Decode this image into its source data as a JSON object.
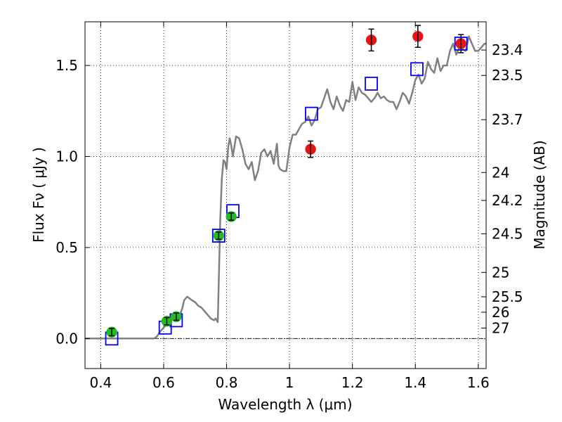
{
  "chart_data": {
    "type": "scatter",
    "xlabel": "Wavelength  λ (μm)",
    "ylabel": "Flux  Fν ( μJy )",
    "ylabel_right": "Magnitude (AB)",
    "xlim": [
      0.35,
      1.625
    ],
    "ylim": [
      -0.165,
      1.74
    ],
    "grid": true,
    "x_ticks": [
      {
        "value": 0.4,
        "label": "0.4"
      },
      {
        "value": 0.6,
        "label": "0.6"
      },
      {
        "value": 0.8,
        "label": "0.8"
      },
      {
        "value": 1.0,
        "label": "1"
      },
      {
        "value": 1.2,
        "label": "1.2"
      },
      {
        "value": 1.4,
        "label": "1.4"
      },
      {
        "value": 1.6,
        "label": "1.6"
      }
    ],
    "y_ticks": [
      {
        "value": 0.0,
        "label": "0.0"
      },
      {
        "value": 0.5,
        "label": "0.5"
      },
      {
        "value": 1.0,
        "label": "1.0"
      },
      {
        "value": 1.5,
        "label": "1.5"
      }
    ],
    "mag_ticks": [
      {
        "value": 23.4,
        "label": "23.4"
      },
      {
        "value": 23.5,
        "label": "23.5"
      },
      {
        "value": 23.7,
        "label": "23.7"
      },
      {
        "value": 24.0,
        "label": "24"
      },
      {
        "value": 24.2,
        "label": "24.2"
      },
      {
        "value": 24.5,
        "label": "24.5"
      },
      {
        "value": 25.0,
        "label": "25"
      },
      {
        "value": 25.5,
        "label": "25.5"
      },
      {
        "value": 26.0,
        "label": "26"
      },
      {
        "value": 27.0,
        "label": "27"
      }
    ],
    "series": [
      {
        "kind": "line",
        "color": "#808080",
        "x": [
          0.35,
          0.57,
          0.578,
          0.59,
          0.6,
          0.615,
          0.63,
          0.64,
          0.65,
          0.66,
          0.665,
          0.675,
          0.69,
          0.7,
          0.71,
          0.72,
          0.73,
          0.74,
          0.75,
          0.76,
          0.765,
          0.772,
          0.78,
          0.785,
          0.79,
          0.795,
          0.8,
          0.805,
          0.81,
          0.815,
          0.82,
          0.83,
          0.84,
          0.85,
          0.86,
          0.87,
          0.88,
          0.89,
          0.9,
          0.91,
          0.92,
          0.93,
          0.94,
          0.95,
          0.96,
          0.965,
          0.97,
          0.98,
          0.99,
          1.0,
          1.01,
          1.02,
          1.03,
          1.04,
          1.05,
          1.06,
          1.07,
          1.08,
          1.09,
          1.1,
          1.11,
          1.12,
          1.13,
          1.14,
          1.15,
          1.16,
          1.17,
          1.18,
          1.19,
          1.2,
          1.21,
          1.22,
          1.23,
          1.24,
          1.25,
          1.26,
          1.27,
          1.28,
          1.29,
          1.3,
          1.31,
          1.32,
          1.33,
          1.34,
          1.35,
          1.36,
          1.37,
          1.38,
          1.39,
          1.4,
          1.41,
          1.42,
          1.43,
          1.44,
          1.45,
          1.46,
          1.47,
          1.48,
          1.49,
          1.5,
          1.51,
          1.52,
          1.53,
          1.54,
          1.55,
          1.56,
          1.57,
          1.58,
          1.59,
          1.6,
          1.61,
          1.62,
          1.625
        ],
        "y": [
          0.0,
          0.0,
          0.01,
          0.04,
          0.06,
          0.09,
          0.11,
          0.12,
          0.12,
          0.17,
          0.21,
          0.23,
          0.21,
          0.2,
          0.18,
          0.17,
          0.15,
          0.13,
          0.11,
          0.1,
          0.11,
          0.09,
          0.66,
          0.88,
          0.98,
          0.97,
          0.93,
          1.05,
          1.1,
          1.06,
          1.0,
          1.11,
          1.1,
          1.04,
          0.96,
          0.93,
          0.97,
          0.87,
          0.92,
          1.02,
          1.04,
          1.0,
          1.03,
          0.96,
          1.07,
          0.95,
          0.93,
          0.92,
          0.92,
          1.05,
          1.12,
          1.12,
          1.15,
          1.18,
          1.19,
          1.22,
          1.17,
          1.2,
          1.26,
          1.27,
          1.32,
          1.37,
          1.3,
          1.26,
          1.33,
          1.28,
          1.25,
          1.31,
          1.3,
          1.41,
          1.31,
          1.38,
          1.35,
          1.34,
          1.32,
          1.3,
          1.32,
          1.35,
          1.32,
          1.33,
          1.31,
          1.3,
          1.3,
          1.26,
          1.3,
          1.35,
          1.33,
          1.29,
          1.35,
          1.42,
          1.45,
          1.4,
          1.43,
          1.52,
          1.48,
          1.46,
          1.54,
          1.47,
          1.5,
          1.5,
          1.58,
          1.62,
          1.56,
          1.6,
          1.59,
          1.58,
          1.66,
          1.62,
          1.58,
          1.58,
          1.6,
          1.62,
          1.62
        ]
      },
      {
        "kind": "open-square",
        "color": "#0000ff",
        "x": [
          0.435,
          0.605,
          0.64,
          0.775,
          0.82,
          1.07,
          1.26,
          1.405,
          1.545
        ],
        "y": [
          0.0,
          0.06,
          0.1,
          0.565,
          0.7,
          1.235,
          1.4,
          1.48,
          1.62
        ]
      },
      {
        "kind": "point-errorbar",
        "color": "#22bb22",
        "x": [
          0.435,
          0.61,
          0.64,
          0.775,
          0.815
        ],
        "y": [
          0.035,
          0.095,
          0.12,
          0.565,
          0.67
        ],
        "err": [
          0.02,
          0.02,
          0.02,
          0.02,
          0.02
        ]
      },
      {
        "kind": "point-errorbar",
        "color": "#ee1111",
        "x": [
          1.067,
          1.26,
          1.408,
          1.545
        ],
        "y": [
          1.04,
          1.64,
          1.66,
          1.62
        ],
        "err": [
          0.045,
          0.06,
          0.06,
          0.05
        ]
      }
    ]
  }
}
